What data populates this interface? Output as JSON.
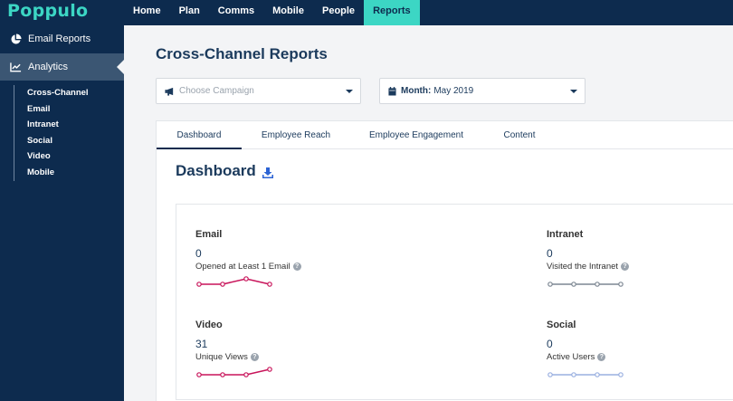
{
  "brand": {
    "logo": "Poppulo",
    "accent": "#3cd6c4",
    "navy": "#0d2b4e"
  },
  "nav": {
    "items": [
      {
        "label": "Home"
      },
      {
        "label": "Plan"
      },
      {
        "label": "Comms"
      },
      {
        "label": "Mobile"
      },
      {
        "label": "People"
      },
      {
        "label": "Reports",
        "active": true
      }
    ]
  },
  "sidebar": {
    "email_reports": {
      "label": "Email Reports",
      "icon": "pie-chart-icon"
    },
    "analytics": {
      "label": "Analytics",
      "icon": "line-chart-icon"
    },
    "subitems": [
      "Cross-Channel",
      "Email",
      "Intranet",
      "Social",
      "Video",
      "Mobile"
    ]
  },
  "page": {
    "title": "Cross-Channel Reports"
  },
  "filters": {
    "campaign": {
      "placeholder": "Choose Campaign",
      "icon": "megaphone-icon"
    },
    "month": {
      "label": "Month:",
      "value": "May 2019",
      "icon": "calendar-icon"
    }
  },
  "tabs": [
    "Dashboard",
    "Employee Reach",
    "Employee Engagement",
    "Content"
  ],
  "dashboard": {
    "title": "Dashboard",
    "download_icon": "download-icon",
    "metrics": {
      "email": {
        "label": "Email",
        "value": "0",
        "desc": "Opened at Least 1 Email",
        "color": "#c8145a",
        "trend": [
          0,
          0,
          1,
          0
        ]
      },
      "intranet": {
        "label": "Intranet",
        "value": "0",
        "desc": "Visited the Intranet",
        "color": "#7d8793",
        "trend": [
          0,
          0,
          0,
          0
        ]
      },
      "video": {
        "label": "Video",
        "value": "31",
        "desc": "Unique Views",
        "color": "#c8145a",
        "trend": [
          0,
          0,
          0,
          1
        ]
      },
      "social": {
        "label": "Social",
        "value": "0",
        "desc": "Active Users",
        "color": "#9ab0e0",
        "trend": [
          0,
          0,
          0,
          0
        ]
      }
    }
  }
}
